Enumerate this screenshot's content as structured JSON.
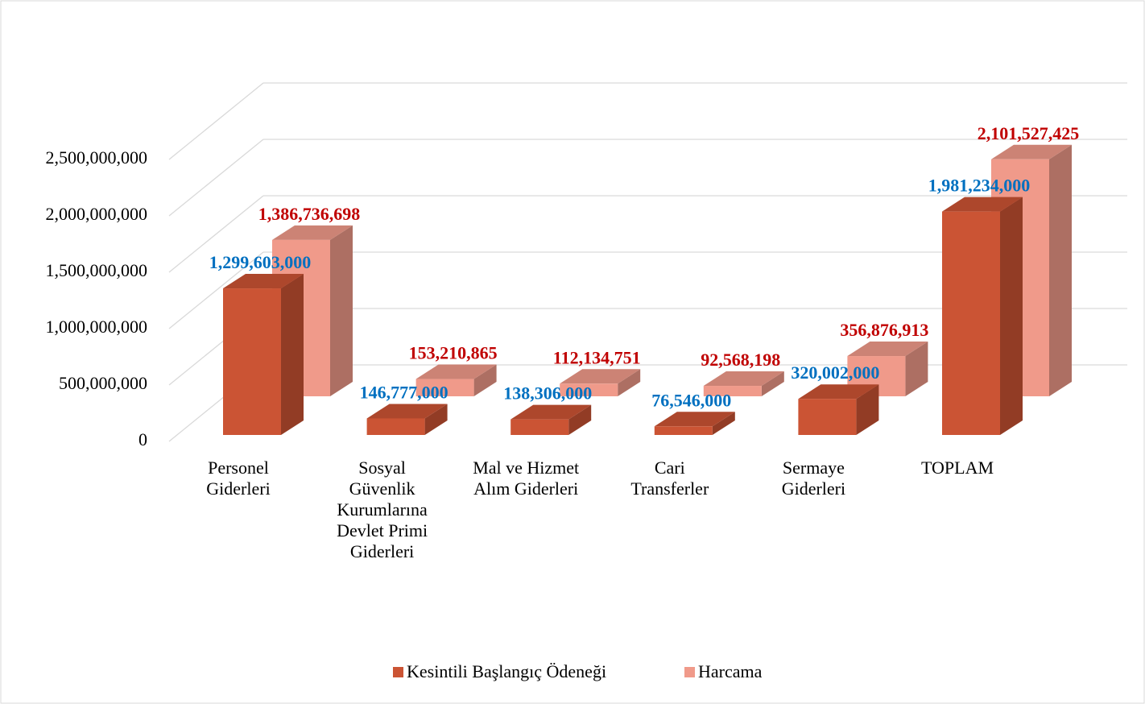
{
  "chart_data": {
    "type": "bar3d",
    "categories": [
      "Personel Giderleri",
      "Sosyal Güvenlik Kurumlarına Devlet Primi Giderleri",
      "Mal ve Hizmet Alım Giderleri",
      "Cari Transferler",
      "Sermaye Giderleri",
      "TOPLAM"
    ],
    "series": [
      {
        "name": "Kesintili Başlangıç Ödeneği",
        "color": "#cb5434",
        "label_color": "#0070c0",
        "values": [
          1299603000,
          146777000,
          138306000,
          76546000,
          320002000,
          1981234000
        ],
        "value_labels": [
          "1,299,603,000",
          "146,777,000",
          "138,306,000",
          "76,546,000",
          "320,002,000",
          "1,981,234,000"
        ]
      },
      {
        "name": "Harcama",
        "color": "#f09a8a",
        "label_color": "#c00000",
        "values": [
          1386736698,
          153210865,
          112134751,
          92568198,
          356876913,
          2101527425
        ],
        "value_labels": [
          "1,386,736,698",
          "153,210,865",
          "112,134,751",
          "92,568,198",
          "356,876,913",
          "2,101,527,425"
        ]
      }
    ],
    "ylim": [
      0,
      2500000000
    ],
    "yticks": [
      0,
      {
        "value": 500000000,
        "label": "500,000,000"
      },
      {
        "value": 1000000000,
        "label": "1,000,000,000"
      },
      {
        "value": 1500000000,
        "label": "1,500,000,000"
      },
      {
        "value": 2000000000,
        "label": "2,000,000,000"
      },
      {
        "value": 2500000000,
        "label": "2,500,000,000"
      }
    ],
    "grid": true,
    "legend": "bottom"
  }
}
